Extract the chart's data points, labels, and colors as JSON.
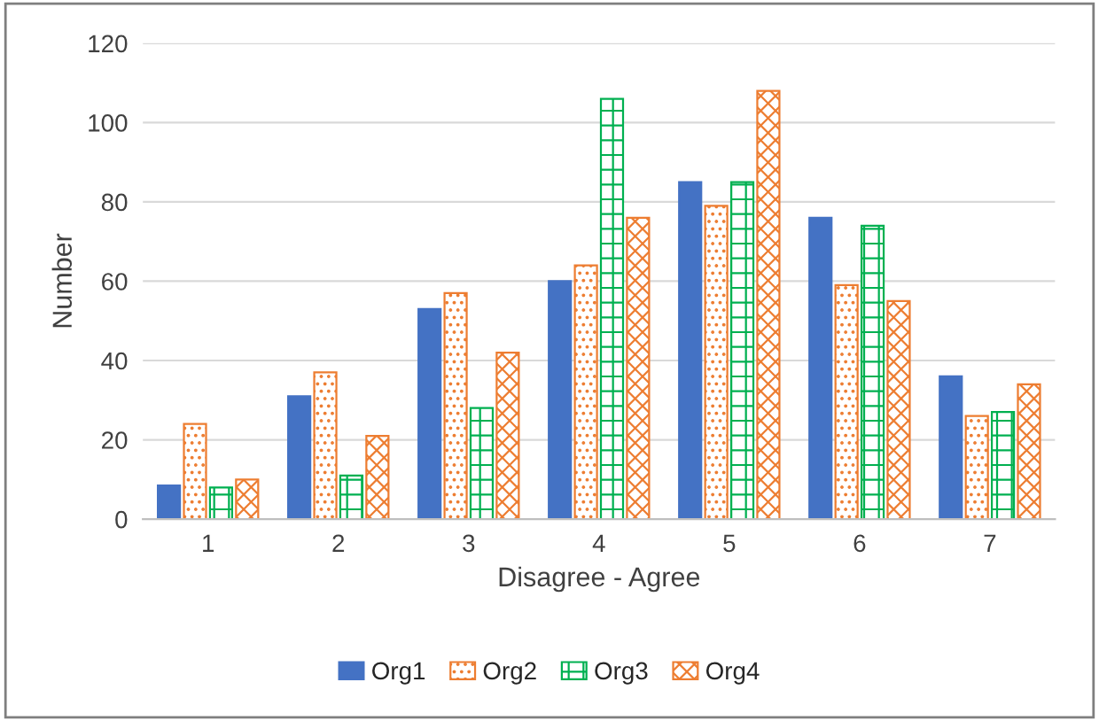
{
  "chart_data": {
    "type": "bar",
    "xlabel": "Disagree - Agree",
    "ylabel": "Number",
    "categories": [
      "1",
      "2",
      "3",
      "4",
      "5",
      "6",
      "7"
    ],
    "series": [
      {
        "name": "Org1",
        "color": "#4472c4",
        "values": [
          8.5,
          31,
          53,
          60,
          85,
          76,
          36
        ]
      },
      {
        "name": "Org2",
        "color": "#ed7d31",
        "values": [
          24,
          37,
          57,
          64,
          79,
          59,
          26
        ]
      },
      {
        "name": "Org3",
        "color": "#00b050",
        "values": [
          8,
          11,
          28,
          106,
          85,
          74,
          27
        ]
      },
      {
        "name": "Org4",
        "color": "#ed7d31",
        "values": [
          10,
          21,
          42,
          76,
          108,
          55,
          34
        ]
      }
    ],
    "ylim": [
      0,
      120
    ],
    "yticks": [
      0,
      20,
      40,
      60,
      80,
      100,
      120
    ],
    "grid": "y",
    "legend": "bottom"
  }
}
